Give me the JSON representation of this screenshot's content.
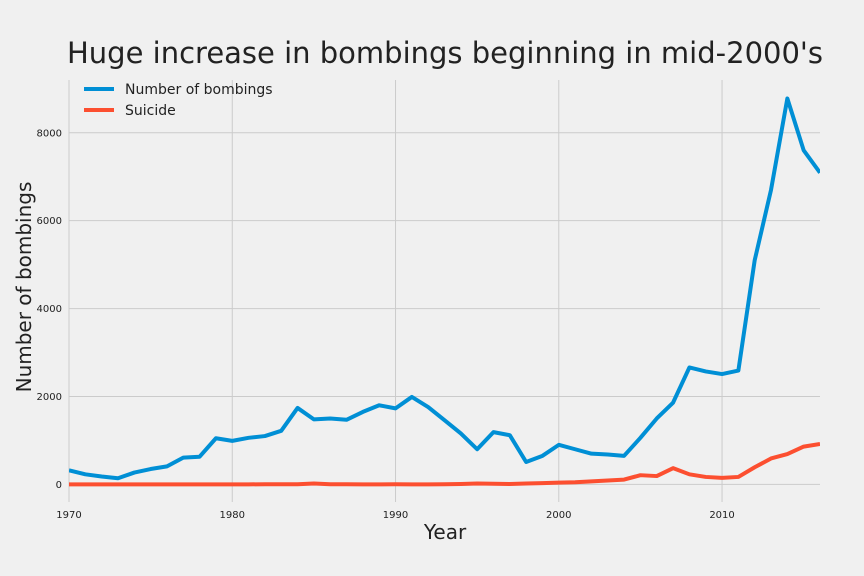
{
  "chart_data": {
    "type": "line",
    "title": "Huge increase in bombings beginning in mid-2000's",
    "xlabel": "Year",
    "ylabel": "Number of bombings",
    "xlim": [
      1970,
      2016
    ],
    "ylim": [
      -400,
      9200
    ],
    "x_ticks": [
      1970,
      1980,
      1990,
      2000,
      2010
    ],
    "y_ticks": [
      0,
      2000,
      4000,
      6000,
      8000
    ],
    "grid": true,
    "legend_position": "top-left",
    "x": [
      1970,
      1971,
      1972,
      1973,
      1974,
      1975,
      1976,
      1977,
      1978,
      1979,
      1980,
      1981,
      1982,
      1983,
      1984,
      1985,
      1986,
      1987,
      1988,
      1989,
      1990,
      1991,
      1992,
      1993,
      1994,
      1995,
      1996,
      1997,
      1998,
      1999,
      2000,
      2001,
      2002,
      2003,
      2004,
      2005,
      2006,
      2007,
      2008,
      2009,
      2010,
      2011,
      2012,
      2013,
      2014,
      2015,
      2016
    ],
    "series": [
      {
        "name": "Number of bombings",
        "color": "#008fd5",
        "values": [
          320,
          230,
          180,
          140,
          270,
          350,
          410,
          610,
          630,
          1050,
          990,
          1060,
          1100,
          1220,
          1740,
          1480,
          1500,
          1470,
          1650,
          1800,
          1730,
          1990,
          1760,
          1460,
          1160,
          800,
          1190,
          1120,
          510,
          650,
          900,
          800,
          700,
          680,
          650,
          1060,
          1500,
          1860,
          2660,
          2570,
          2510,
          2590,
          5100,
          6700,
          8780,
          7600,
          7090
        ]
      },
      {
        "name": "Suicide",
        "color": "#fc4f30",
        "values": [
          0,
          0,
          0,
          0,
          0,
          0,
          0,
          0,
          0,
          0,
          0,
          2,
          3,
          5,
          5,
          20,
          5,
          3,
          2,
          2,
          3,
          2,
          2,
          5,
          10,
          20,
          15,
          10,
          20,
          30,
          40,
          50,
          70,
          90,
          110,
          210,
          190,
          370,
          230,
          170,
          150,
          170,
          390,
          590,
          690,
          860,
          920
        ]
      }
    ]
  }
}
